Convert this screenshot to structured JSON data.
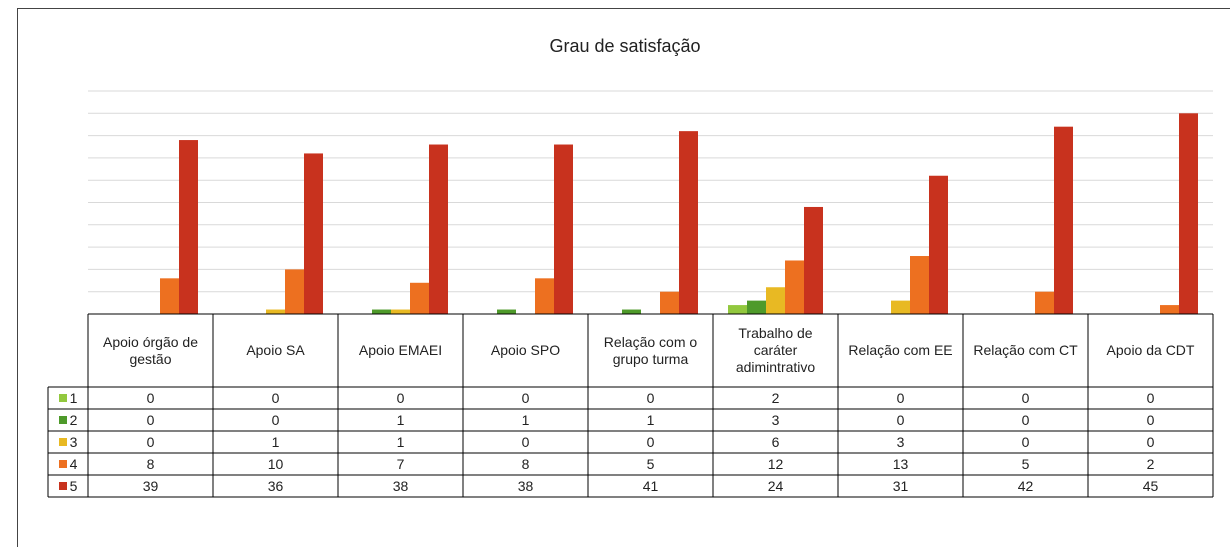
{
  "chart_data": {
    "type": "bar",
    "title": "Grau de satisfação",
    "categories": [
      "Apoio órgão de gestão",
      "Apoio SA",
      "Apoio EMAEI",
      "Apoio SPO",
      "Relação com o grupo turma",
      "Trabalho de caráter adimintrativo",
      "Relação com EE",
      "Relação com CT",
      "Apoio da CDT"
    ],
    "series": [
      {
        "name": "1",
        "color": "#92c83e",
        "values": [
          0,
          0,
          0,
          0,
          0,
          2,
          0,
          0,
          0
        ]
      },
      {
        "name": "2",
        "color": "#4e9a2a",
        "values": [
          0,
          0,
          1,
          1,
          1,
          3,
          0,
          0,
          0
        ]
      },
      {
        "name": "3",
        "color": "#e8b923",
        "values": [
          0,
          1,
          1,
          0,
          0,
          6,
          3,
          0,
          0
        ]
      },
      {
        "name": "4",
        "color": "#ed7020",
        "values": [
          8,
          10,
          7,
          8,
          5,
          12,
          13,
          5,
          2
        ]
      },
      {
        "name": "5",
        "color": "#c8321e",
        "values": [
          39,
          36,
          38,
          38,
          41,
          24,
          31,
          42,
          45
        ]
      }
    ],
    "ylim": [
      0,
      50
    ],
    "yticks": [
      0,
      5,
      10,
      15,
      20,
      25,
      30,
      35,
      40,
      45,
      50
    ],
    "grid": true
  }
}
